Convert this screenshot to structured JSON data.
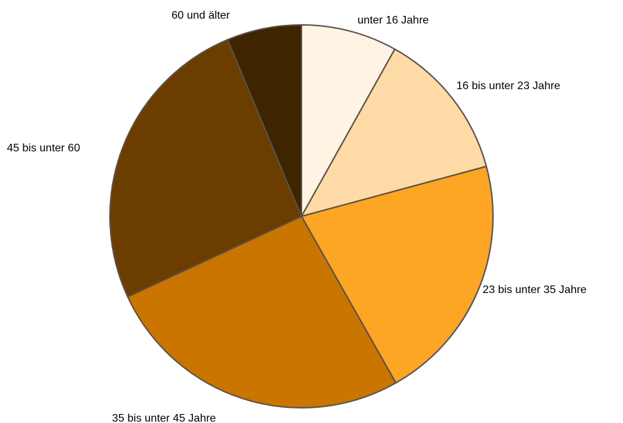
{
  "chart_data": {
    "type": "pie",
    "start_angle_deg": 0,
    "direction": "clockwise",
    "border_color": "#5a5048",
    "slices": [
      {
        "label": "unter 16 Jahre",
        "value": 8.1,
        "color": "#fff4e4"
      },
      {
        "label": "16 bis unter 23 Jahre",
        "value": 12.7,
        "color": "#fedba6"
      },
      {
        "label": "23 bis unter 35 Jahre",
        "value": 21.0,
        "color": "#fda524"
      },
      {
        "label": "35 bis unter 45 Jahre",
        "value": 26.3,
        "color": "#c97500"
      },
      {
        "label": "45 bis unter 60",
        "value": 25.6,
        "color": "#6b3e00"
      },
      {
        "label": "60 und älter",
        "value": 6.3,
        "color": "#3e2500"
      }
    ]
  }
}
